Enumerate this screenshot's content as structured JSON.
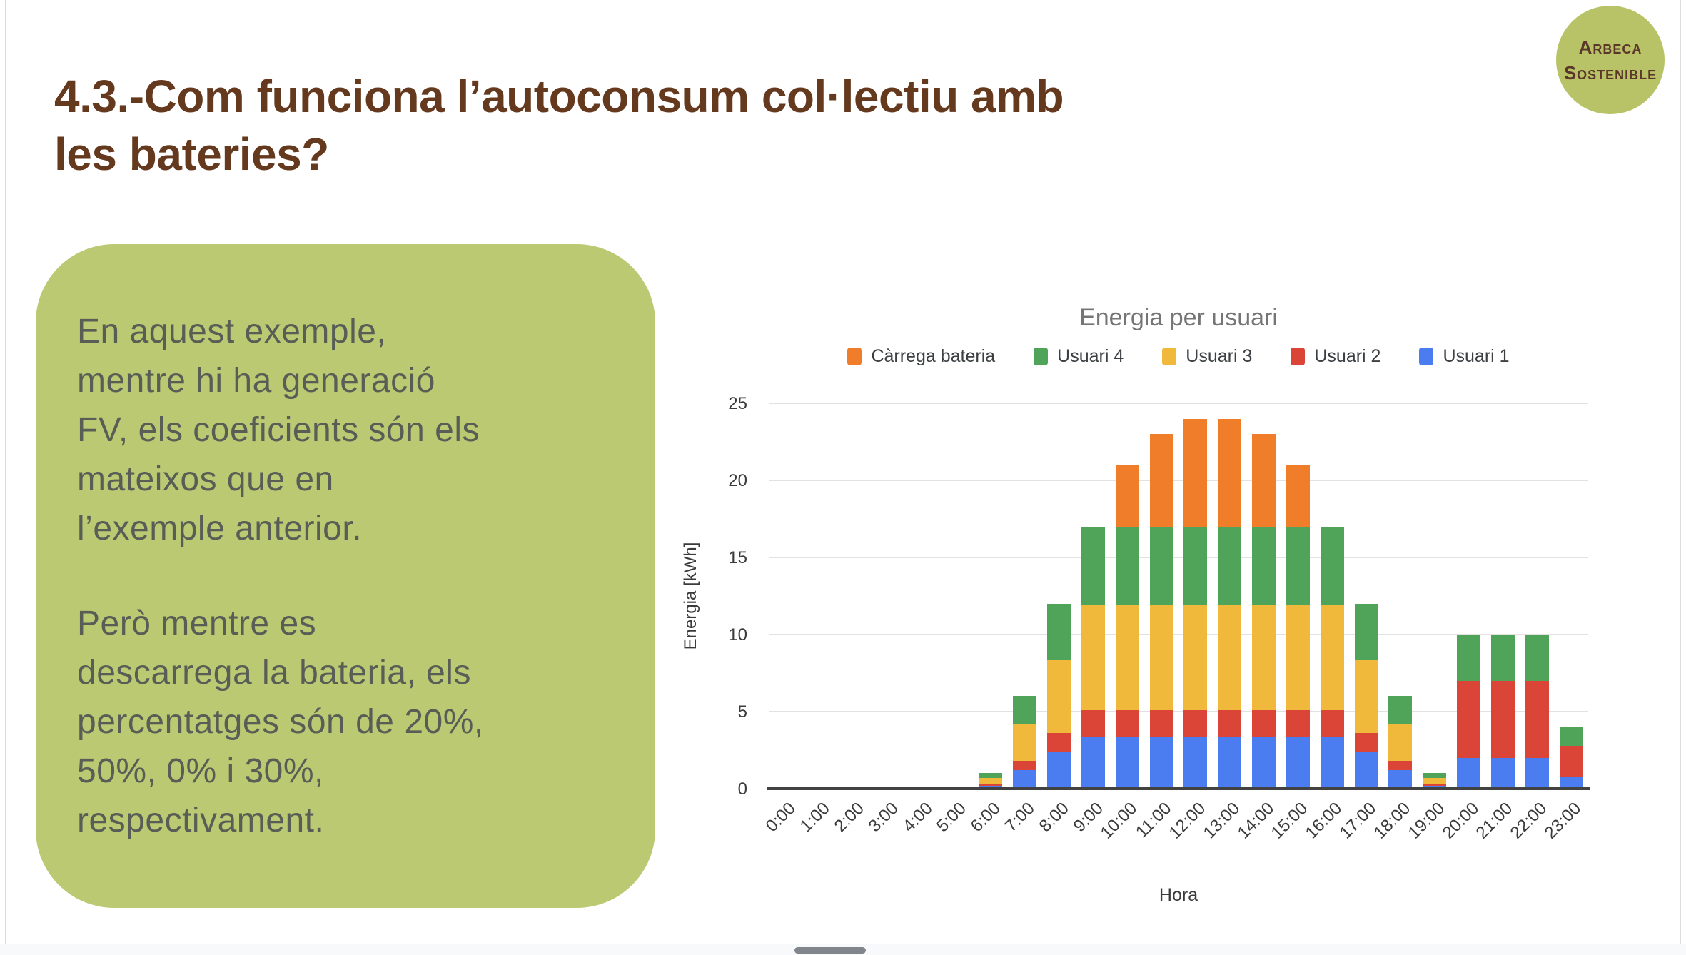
{
  "slide": {
    "title_lines": [
      "4.3.-Com funciona l’autoconsum col·lectiu amb",
      "les bateries?"
    ],
    "title_color": "#64391d",
    "note_box": {
      "bg_color": "#bcc973",
      "text_color": "#585d56",
      "paragraphs": [
        {
          "lines": [
            "En aquest exemple,",
            "mentre hi ha generació",
            "FV, els coeficients són els",
            "mateixos que en",
            "l’exemple anterior."
          ]
        },
        {
          "lines": [
            "Però mentre es",
            "descarrega la bateria, els",
            "percentatges són de 20%,",
            "50%, 0% i 30%,",
            "respectivament."
          ]
        }
      ]
    },
    "logo": {
      "lines": [
        "Arbeca",
        "Sostenible"
      ],
      "bg_color": "#b7c366",
      "text_color": "#5b3629"
    }
  },
  "chart_data": {
    "type": "bar",
    "stacked": true,
    "title": "Energia per usuari",
    "xlabel": "Hora",
    "ylabel": "Energia [kWh]",
    "ylim": [
      0,
      25
    ],
    "yticks": [
      0,
      5,
      10,
      15,
      20,
      25
    ],
    "grid": true,
    "legend_position": "top",
    "categories": [
      "0:00",
      "1:00",
      "2:00",
      "3:00",
      "4:00",
      "5:00",
      "6:00",
      "7:00",
      "8:00",
      "9:00",
      "10:00",
      "11:00",
      "12:00",
      "13:00",
      "14:00",
      "15:00",
      "16:00",
      "17:00",
      "18:00",
      "19:00",
      "20:00",
      "21:00",
      "22:00",
      "23:00"
    ],
    "series": [
      {
        "name": "Usuari 1",
        "color": "#4c7df0",
        "values": [
          0,
          0,
          0,
          0,
          0,
          0,
          0.2,
          1.2,
          2.4,
          3.4,
          3.4,
          3.4,
          3.4,
          3.4,
          3.4,
          3.4,
          3.4,
          2.4,
          1.2,
          0.2,
          2,
          2,
          2,
          0.8
        ]
      },
      {
        "name": "Usuari 2",
        "color": "#db4538",
        "values": [
          0,
          0,
          0,
          0,
          0,
          0,
          0.1,
          0.6,
          1.2,
          1.7,
          1.7,
          1.7,
          1.7,
          1.7,
          1.7,
          1.7,
          1.7,
          1.2,
          0.6,
          0.1,
          5,
          5,
          5,
          2
        ]
      },
      {
        "name": "Usuari 3",
        "color": "#f0b93c",
        "values": [
          0,
          0,
          0,
          0,
          0,
          0,
          0.4,
          2.4,
          4.8,
          6.8,
          6.8,
          6.8,
          6.8,
          6.8,
          6.8,
          6.8,
          6.8,
          4.8,
          2.4,
          0.4,
          0,
          0,
          0,
          0
        ]
      },
      {
        "name": "Usuari 4",
        "color": "#4fa45a",
        "values": [
          0,
          0,
          0,
          0,
          0,
          0,
          0.3,
          1.8,
          3.6,
          5.1,
          5.1,
          5.1,
          5.1,
          5.1,
          5.1,
          5.1,
          5.1,
          3.6,
          1.8,
          0.3,
          3,
          3,
          3,
          1.2
        ]
      },
      {
        "name": "Càrrega bateria",
        "color": "#f07d29",
        "values": [
          0,
          0,
          0,
          0,
          0,
          0,
          0,
          0,
          0,
          0,
          4,
          6,
          7,
          7,
          6,
          4,
          0,
          0,
          0,
          0,
          0,
          0,
          0,
          0
        ]
      }
    ],
    "totals": [
      0,
      0,
      0,
      0,
      0,
      0,
      1,
      6,
      12,
      17,
      21,
      23,
      24,
      24,
      23,
      21,
      17,
      12,
      6,
      1,
      10,
      10,
      10,
      4
    ],
    "legend_order": [
      "Càrrega bateria",
      "Usuari 4",
      "Usuari 3",
      "Usuari 2",
      "Usuari 1"
    ],
    "axis_colors": {
      "gridline": "#e2e2e2",
      "baseline": "#424242",
      "tick_text": "#3b3b3b",
      "title_text": "#757575"
    }
  },
  "scrollbar": {
    "track_color": "#f8f9fa",
    "thumb_color": "#80868b"
  }
}
